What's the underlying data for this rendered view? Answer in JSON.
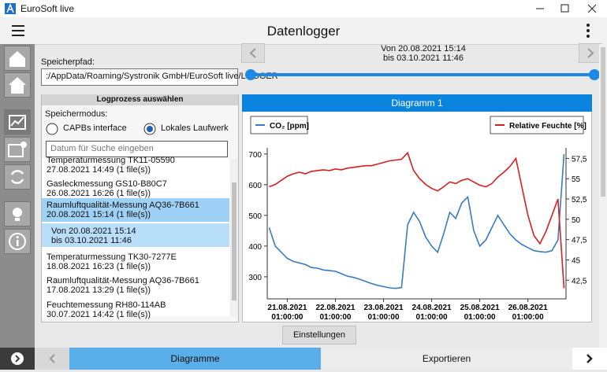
{
  "window": {
    "title": "EuroSoft live"
  },
  "header": {
    "title": "Datenlogger"
  },
  "path": {
    "label": "Speicherpfad:",
    "value": ":/AppData/Roaming/Systronik GmbH/EuroSoft live/LOGGER"
  },
  "range": {
    "from": "Von 20.08.2021 15:14",
    "to": "bis 03.10.2021 11:46"
  },
  "log_panel": {
    "title": "Logprozess auswählen",
    "mode_label": "Speichermodus:",
    "modes": [
      {
        "label": "CAPBs interface",
        "selected": false
      },
      {
        "label": "Lokales Laufwerk",
        "selected": true
      }
    ],
    "search_placeholder": "Datum für Suche eingeben",
    "items": [
      {
        "name": "Temperaturmessung TK11-05590",
        "date": "27.08.2021 14:49 (1 file(s))",
        "selected": false
      },
      {
        "name": "Gasleckmessung GS10-B80C7",
        "date": "26.08.2021 16:26 (1 file(s))",
        "selected": false
      },
      {
        "name": "Raumluftqualität-Messung AQ36-7B661",
        "date": "20.08.2021 15:14 (1 file(s))",
        "selected": true,
        "detail": [
          "Von 20.08.2021 15:14",
          "bis 03.10.2021 11:46"
        ]
      },
      {
        "name": "Temperaturmessung TK30-7277E",
        "date": "18.08.2021 16:23 (1 file(s))",
        "selected": false
      },
      {
        "name": "Raumluftqualität-Messung AQ36-7B661",
        "date": "17.08.2021 13:29 (1 file(s))",
        "selected": false
      },
      {
        "name": "Feuchtemessung RH80-114AB",
        "date": "30.07.2021 14:42 (1 file(s))",
        "selected": false
      }
    ]
  },
  "chart_data": {
    "type": "line",
    "title": "Diagramm 1",
    "x": [
      "20.08.2021 16:00:00",
      "20.08.2021 19:00:00",
      "20.08.2021 22:00:00",
      "21.08.2021 01:00:00",
      "21.08.2021 04:00:00",
      "21.08.2021 07:00:00",
      "21.08.2021 10:00:00",
      "21.08.2021 13:00:00",
      "21.08.2021 16:00:00",
      "21.08.2021 19:00:00",
      "21.08.2021 22:00:00",
      "22.08.2021 01:00:00",
      "22.08.2021 04:00:00",
      "22.08.2021 07:00:00",
      "22.08.2021 10:00:00",
      "22.08.2021 13:00:00",
      "22.08.2021 16:00:00",
      "22.08.2021 19:00:00",
      "22.08.2021 22:00:00",
      "23.08.2021 01:00:00",
      "23.08.2021 04:00:00",
      "23.08.2021 07:00:00",
      "23.08.2021 10:00:00",
      "23.08.2021 13:00:00",
      "23.08.2021 16:00:00",
      "23.08.2021 19:00:00",
      "23.08.2021 22:00:00",
      "24.08.2021 01:00:00",
      "24.08.2021 04:00:00",
      "24.08.2021 07:00:00",
      "24.08.2021 10:00:00",
      "24.08.2021 13:00:00",
      "24.08.2021 16:00:00",
      "24.08.2021 19:00:00",
      "24.08.2021 22:00:00",
      "25.08.2021 01:00:00",
      "25.08.2021 04:00:00",
      "25.08.2021 07:00:00",
      "25.08.2021 10:00:00",
      "25.08.2021 13:00:00",
      "25.08.2021 16:00:00",
      "25.08.2021 19:00:00",
      "25.08.2021 22:00:00",
      "26.08.2021 01:00:00",
      "26.08.2021 04:00:00",
      "26.08.2021 07:00:00",
      "26.08.2021 10:00:00",
      "26.08.2021 13:00:00",
      "26.08.2021 16:00:00",
      "26.08.2021 19:00:00"
    ],
    "series": [
      {
        "name": "CO₂ [ppm]",
        "color": "#3a7bbf",
        "axis": "y",
        "values": [
          460,
          400,
          380,
          360,
          350,
          345,
          340,
          330,
          328,
          322,
          320,
          318,
          310,
          302,
          298,
          292,
          285,
          278,
          272,
          268,
          264,
          262,
          265,
          470,
          510,
          480,
          430,
          400,
          380,
          440,
          510,
          490,
          540,
          560,
          450,
          400,
          420,
          460,
          500,
          470,
          440,
          420,
          405,
          395,
          385,
          382,
          380,
          385,
          420,
          700
        ]
      },
      {
        "name": "Relative Feuchte [%]",
        "color": "#d42020",
        "axis": "y2",
        "values": [
          54.0,
          54.3,
          54.8,
          55.3,
          55.6,
          55.8,
          55.6,
          55.9,
          56.0,
          56.1,
          56.0,
          56.2,
          56.1,
          56.3,
          56.4,
          56.5,
          56.6,
          56.6,
          56.8,
          57.0,
          57.2,
          57.3,
          57.4,
          58.2,
          56.0,
          55.0,
          54.3,
          53.8,
          53.5,
          54.0,
          54.6,
          54.4,
          54.8,
          55.0,
          54.6,
          54.2,
          54.0,
          54.4,
          55.2,
          55.8,
          56.5,
          57.5,
          54.0,
          50.5,
          48.0,
          47.0,
          48.5,
          50.5,
          52.5,
          41.5
        ]
      }
    ],
    "xlim": [
      "20.08.2021 15:00:00",
      "26.08.2021 20:00:00"
    ],
    "xticks": [
      {
        "value": "21.08.2021 01:00:00",
        "label": [
          "21.08.2021",
          "01:00:00"
        ]
      },
      {
        "value": "22.08.2021 01:00:00",
        "label": [
          "22.08.2021",
          "01:00:00"
        ]
      },
      {
        "value": "23.08.2021 01:00:00",
        "label": [
          "23.08.2021",
          "01:00:00"
        ]
      },
      {
        "value": "24.08.2021 01:00:00",
        "label": [
          "24.08.2021",
          "01:00:00"
        ]
      },
      {
        "value": "25.08.2021 01:00:00",
        "label": [
          "25.08.2021",
          "01:00:00"
        ]
      },
      {
        "value": "26.08.2021 01:00:00",
        "label": [
          "26.08.2021",
          "01:00:00"
        ]
      }
    ],
    "ylim": [
      228,
      720
    ],
    "yticks": [
      300,
      400,
      500,
      600,
      700
    ],
    "y2lim": [
      40.2,
      58.8
    ],
    "y2ticks": [
      {
        "value": 42.5,
        "label": "42,5"
      },
      45,
      {
        "value": 47.5,
        "label": "47,5"
      },
      50,
      {
        "value": 52.5,
        "label": "52,5"
      },
      55,
      {
        "value": 57.5,
        "label": "57,5"
      }
    ],
    "grid": false
  },
  "buttons": {
    "settings": "Einstellungen"
  },
  "tabs": [
    {
      "label": "Diagramme",
      "active": true
    },
    {
      "label": "Exportieren",
      "active": false
    }
  ]
}
